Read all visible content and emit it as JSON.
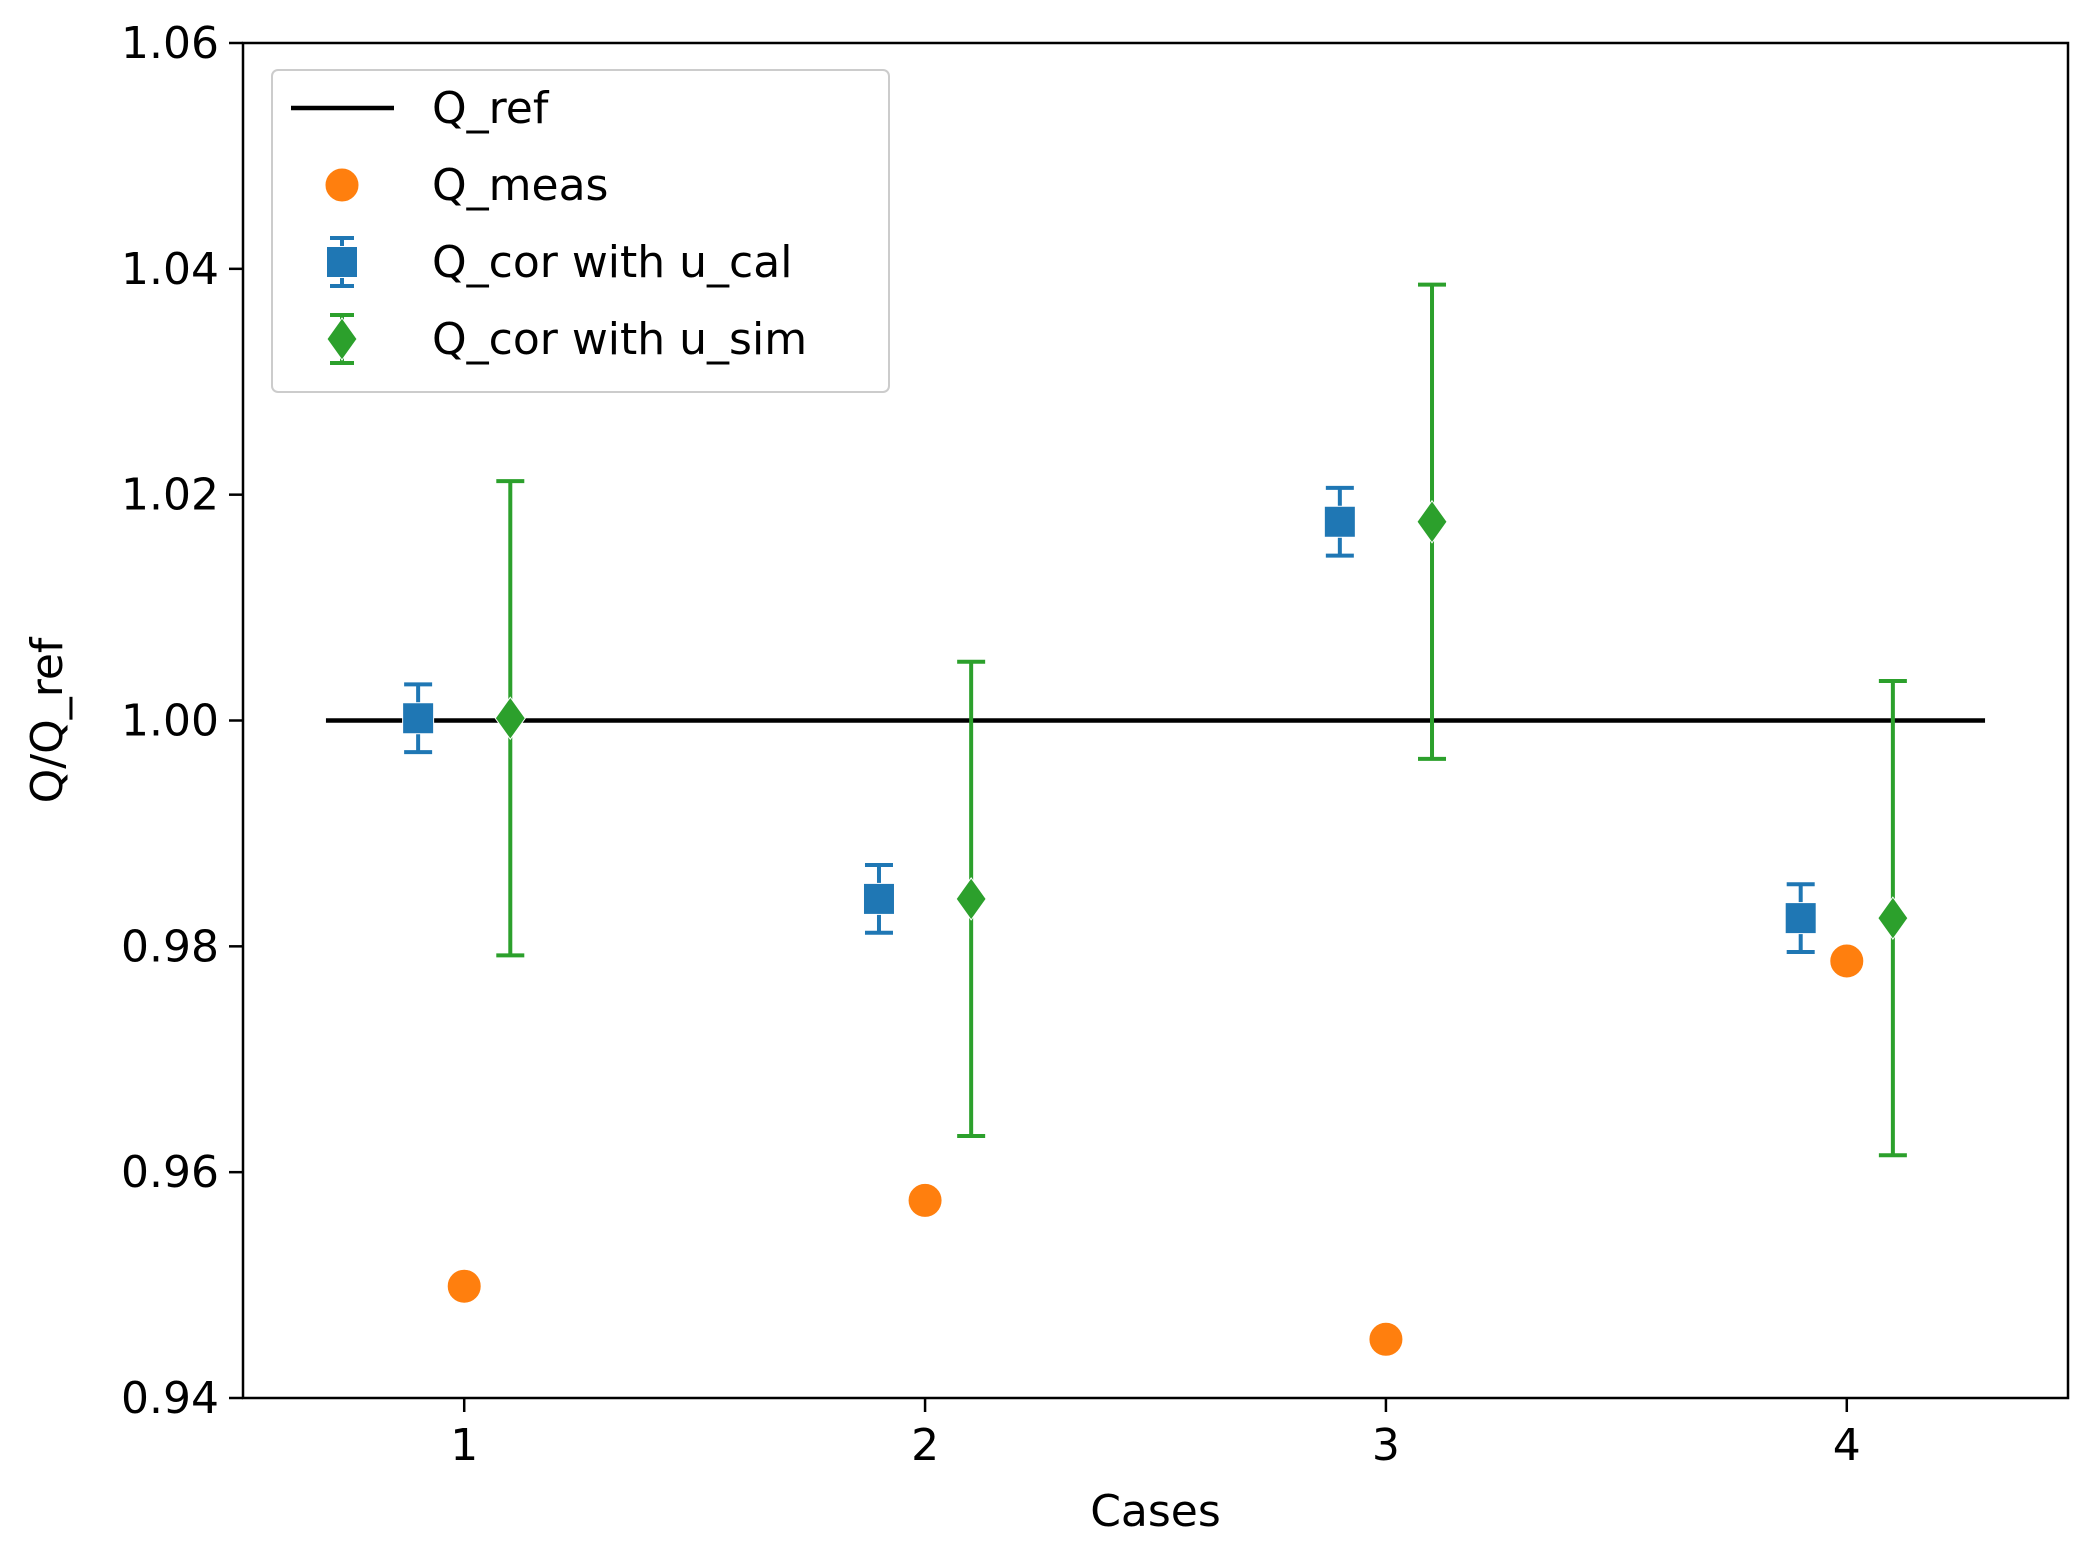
{
  "chart_data": {
    "type": "scatter",
    "title": "",
    "xlabel": "Cases",
    "ylabel": "Q/Q_ref",
    "xlim": [
      0.52,
      4.48
    ],
    "ylim": [
      0.94,
      1.06
    ],
    "xticks": [
      1,
      2,
      3,
      4
    ],
    "xtick_labels": [
      "1",
      "2",
      "3",
      "4"
    ],
    "yticks": [
      0.94,
      0.96,
      0.98,
      1.0,
      1.02,
      1.04,
      1.06
    ],
    "ytick_labels": [
      "0.94",
      "0.96",
      "0.98",
      "1.00",
      "1.02",
      "1.04",
      "1.06"
    ],
    "grid": false,
    "legend_position": "top-left",
    "series": [
      {
        "name": "Q_ref",
        "kind": "line",
        "color": "#000000",
        "x": [
          0.7,
          4.3
        ],
        "y": [
          1.0,
          1.0
        ]
      },
      {
        "name": "Q_meas",
        "kind": "circle",
        "color": "#ff7f0e",
        "x": [
          1,
          2,
          3,
          4
        ],
        "y": [
          0.9499,
          0.9575,
          0.9452,
          0.9787
        ]
      },
      {
        "name": "Q_cor with u_cal",
        "kind": "square-errorbar",
        "color": "#1f77b4",
        "x": [
          0.9,
          1.9,
          2.9,
          3.9
        ],
        "y": [
          1.0002,
          0.9842,
          1.0176,
          0.9825
        ],
        "yerr": [
          0.003,
          0.003,
          0.003,
          0.003
        ]
      },
      {
        "name": "Q_cor with u_sim",
        "kind": "diamond-errorbar",
        "color": "#2ca02c",
        "x": [
          1.1,
          2.1,
          3.1,
          4.1
        ],
        "y": [
          1.0002,
          0.9842,
          1.0176,
          0.9825
        ],
        "yerr": [
          0.021,
          0.021,
          0.021,
          0.021
        ]
      }
    ]
  }
}
